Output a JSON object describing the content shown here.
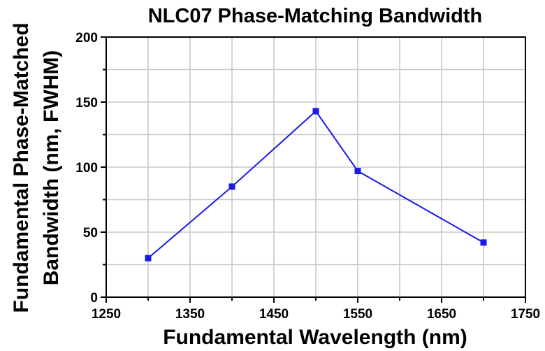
{
  "chart_data": {
    "type": "line",
    "title": "NLC07 Phase-Matching Bandwidth",
    "xlabel": "Fundamental Wavelength (nm)",
    "ylabel_lines": [
      "Fundamental Phase-Matched",
      "Bandwidth (nm, FWHM)"
    ],
    "xlim": [
      1250,
      1750
    ],
    "ylim": [
      0,
      200
    ],
    "xticks": [
      1250,
      1350,
      1450,
      1550,
      1650,
      1750
    ],
    "yticks": [
      0,
      50,
      100,
      150,
      200
    ],
    "grid": true,
    "series": [
      {
        "color": "#1a1ae6",
        "marker": "square",
        "x": [
          1300,
          1400,
          1500,
          1550,
          1700
        ],
        "y": [
          30,
          85,
          143,
          97,
          42
        ]
      }
    ]
  }
}
